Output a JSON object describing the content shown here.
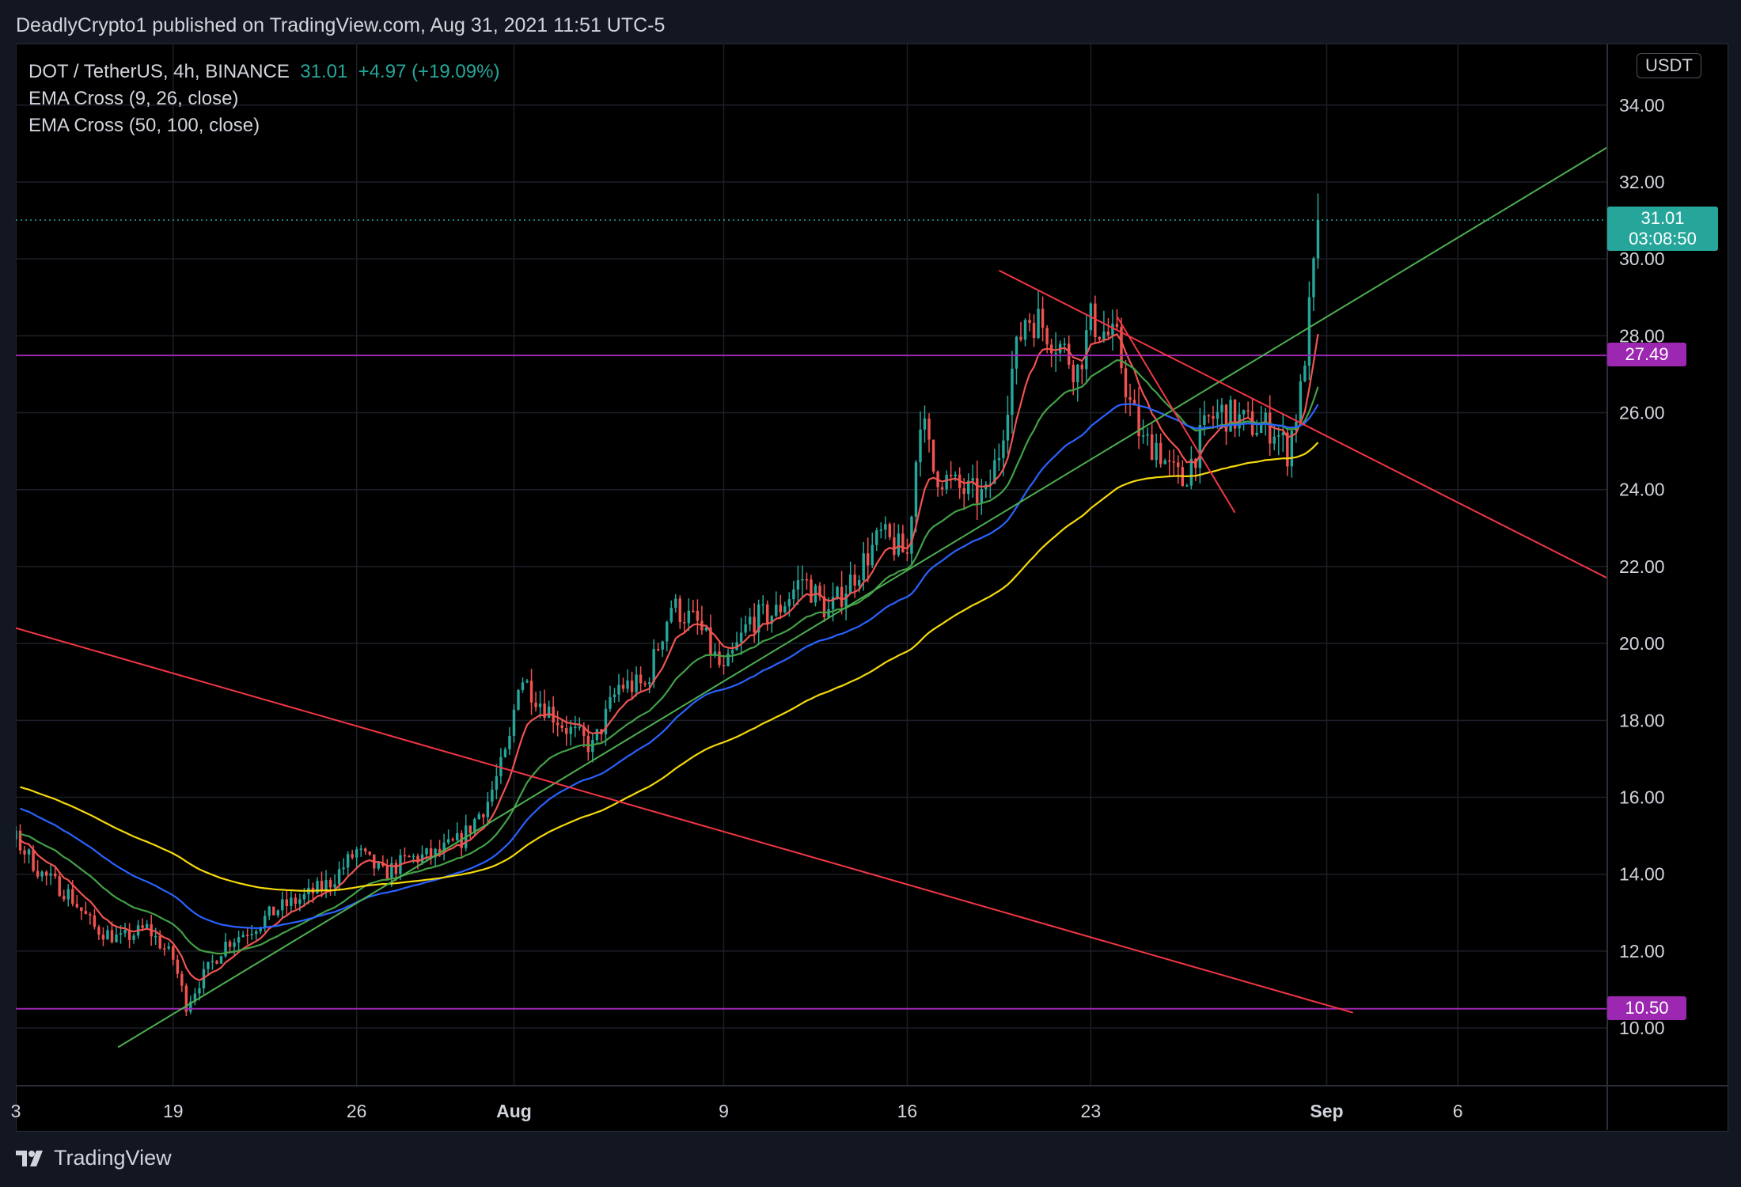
{
  "header": {
    "publisher_line": "DeadlyCrypto1 published on TradingView.com, Aug 31, 2021 11:51 UTC-5"
  },
  "legend": {
    "symbol": "DOT / TetherUS, 4h, BINANCE",
    "last": "31.01",
    "change": "+4.97",
    "change_pct": "(+19.09%)",
    "indicator_1": "EMA Cross (9, 26, close)",
    "indicator_2": "EMA Cross (50, 100, close)"
  },
  "currency": "USDT",
  "footer": {
    "brand": "TradingView"
  },
  "colors": {
    "up": "#26a69a",
    "down": "#ef5350",
    "ema9": "#ef5350",
    "ema26": "#43a047",
    "ema50": "#2962ff",
    "ema100": "#f5d90a",
    "level": "#9c27b0",
    "trend_green": "#4caf50",
    "trend_red": "#f23645",
    "price_line": "#26a69a"
  },
  "chart_data": {
    "type": "candlestick",
    "symbol": "DOT/USDT",
    "timeframe": "4h",
    "exchange": "BINANCE",
    "yaxis": {
      "ticks": [
        "34.00",
        "32.00",
        "30.00",
        "28.00",
        "26.00",
        "24.00",
        "22.00",
        "20.00",
        "18.00",
        "16.00",
        "14.00",
        "12.00",
        "10.00"
      ],
      "range": [
        8.5,
        35.6
      ]
    },
    "xaxis": {
      "ticks": [
        {
          "label": "3",
          "day": 13,
          "bold": false
        },
        {
          "label": "19",
          "day": 19,
          "bold": false
        },
        {
          "label": "26",
          "day": 26,
          "bold": false
        },
        {
          "label": "Aug",
          "day": 32,
          "bold": true
        },
        {
          "label": "9",
          "day": 40,
          "bold": false
        },
        {
          "label": "16",
          "day": 47,
          "bold": false
        },
        {
          "label": "23",
          "day": 54,
          "bold": false
        },
        {
          "label": "Sep",
          "day": 63,
          "bold": true
        },
        {
          "label": "6",
          "day": 68,
          "bold": false
        }
      ],
      "range_days": [
        13,
        73.7
      ]
    },
    "price_anchors": [
      [
        13,
        14.9
      ],
      [
        14,
        14.0
      ],
      [
        15,
        13.5
      ],
      [
        16,
        12.6
      ],
      [
        17,
        12.3
      ],
      [
        18,
        12.6
      ],
      [
        19,
        11.8
      ],
      [
        19.5,
        10.6
      ],
      [
        20,
        11.2
      ],
      [
        21,
        12.2
      ],
      [
        22,
        12.6
      ],
      [
        23,
        13.1
      ],
      [
        24,
        13.4
      ],
      [
        25,
        13.8
      ],
      [
        26,
        14.6
      ],
      [
        27,
        14.0
      ],
      [
        28,
        14.4
      ],
      [
        29,
        14.5
      ],
      [
        30,
        14.9
      ],
      [
        31,
        15.9
      ],
      [
        31.8,
        17.3
      ],
      [
        32.2,
        19.2
      ],
      [
        33,
        18.5
      ],
      [
        34,
        17.8
      ],
      [
        35,
        17.3
      ],
      [
        36,
        18.9
      ],
      [
        37,
        18.9
      ],
      [
        38,
        21.0
      ],
      [
        39,
        20.5
      ],
      [
        40,
        19.2
      ],
      [
        41,
        20.6
      ],
      [
        42,
        20.8
      ],
      [
        43,
        21.7
      ],
      [
        44,
        20.8
      ],
      [
        45,
        21.8
      ],
      [
        46,
        22.8
      ],
      [
        47,
        22.3
      ],
      [
        47.5,
        26.0
      ],
      [
        48,
        24.5
      ],
      [
        49,
        24.0
      ],
      [
        50,
        23.8
      ],
      [
        50.5,
        25.0
      ],
      [
        51,
        27.1
      ],
      [
        51.5,
        28.5
      ],
      [
        52,
        28.4
      ],
      [
        53,
        27.6
      ],
      [
        53.5,
        27.1
      ],
      [
        54,
        28.4
      ],
      [
        55,
        27.8
      ],
      [
        55.5,
        26.2
      ],
      [
        56,
        25.2
      ],
      [
        56.5,
        25.2
      ],
      [
        57,
        24.5
      ],
      [
        57.5,
        24.2
      ],
      [
        58,
        25.0
      ],
      [
        58.5,
        25.8
      ],
      [
        59,
        26.0
      ],
      [
        60,
        25.7
      ],
      [
        61,
        25.6
      ],
      [
        61.5,
        25.0
      ],
      [
        62,
        26.5
      ],
      [
        62.4,
        29.0
      ],
      [
        62.7,
        31.0
      ]
    ],
    "last_price": 31.01,
    "countdown": "03:08:50",
    "levels": [
      {
        "name": "horizontal-27.49",
        "price": 27.49,
        "label": "27.49"
      },
      {
        "name": "horizontal-10.50",
        "price": 10.5,
        "label": "10.50"
      }
    ],
    "trendlines": [
      {
        "name": "green-uptrend",
        "color": "green",
        "from": [
          16.9,
          9.5
        ],
        "to": [
          73.7,
          32.9
        ]
      },
      {
        "name": "red-long-downtrend",
        "color": "red",
        "from": [
          13,
          20.4
        ],
        "to": [
          64,
          10.4
        ]
      },
      {
        "name": "red-short-downtrend",
        "color": "red",
        "from": [
          50.5,
          29.7
        ],
        "to": [
          73.7,
          21.7
        ]
      },
      {
        "name": "red-steep-downtrend",
        "color": "red",
        "from": [
          55.0,
          28.5
        ],
        "to": [
          59.5,
          23.4
        ]
      }
    ],
    "ema_lines": [
      {
        "name": "EMA 9",
        "color": "red",
        "period": 9
      },
      {
        "name": "EMA 26",
        "color": "green",
        "period": 26
      },
      {
        "name": "EMA 50",
        "color": "blue",
        "period": 50
      },
      {
        "name": "EMA 100",
        "color": "yellow",
        "period": 100
      }
    ]
  }
}
